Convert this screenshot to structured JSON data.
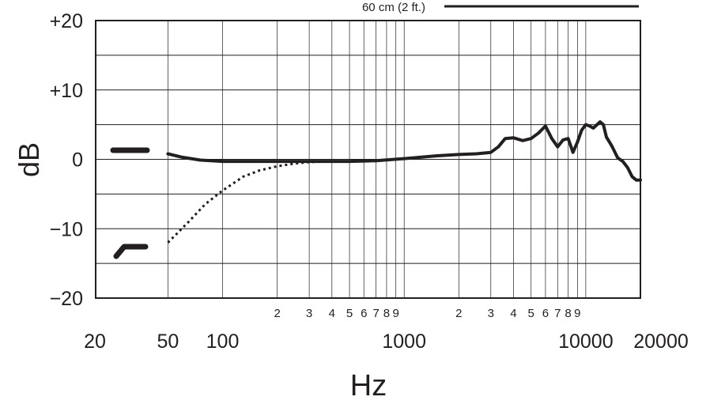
{
  "chart_data": {
    "type": "line",
    "xscale": "log",
    "xlim": [
      20,
      20000
    ],
    "ylim": [
      -20,
      20
    ],
    "xlabel": "Hz",
    "ylabel": "dB",
    "y_ticks": [
      "+20",
      "+10",
      "0",
      "−10",
      "−20"
    ],
    "y_tick_values": [
      20,
      10,
      0,
      -10,
      -20
    ],
    "x_major_ticks": [
      "20",
      "50",
      "100",
      "1000",
      "10000",
      "20000"
    ],
    "x_major_tick_values": [
      20,
      50,
      100,
      1000,
      10000,
      20000
    ],
    "x_minor_ticks": [
      "2",
      "3",
      "4",
      "5",
      "6",
      "7",
      "8",
      "9",
      "2",
      "3",
      "4",
      "5",
      "6",
      "7",
      "8",
      "9"
    ],
    "x_minor_tick_values": [
      200,
      300,
      400,
      500,
      600,
      700,
      800,
      900,
      2000,
      3000,
      4000,
      5000,
      6000,
      7000,
      8000,
      9000
    ],
    "legend_label": "60 cm (2 ft.)",
    "grid": true,
    "series": [
      {
        "style": "solid",
        "x": [
          50,
          60,
          75,
          100,
          150,
          200,
          300,
          400,
          500,
          700,
          1000,
          1500,
          2000,
          2500,
          3000,
          3300,
          3600,
          4000,
          4500,
          5000,
          5500,
          6000,
          6500,
          7000,
          7500,
          8000,
          8500,
          9000,
          9500,
          10000,
          10500,
          11000,
          12000,
          12500,
          13000,
          13500,
          14000,
          15000,
          16000,
          17000,
          18000,
          19000,
          20000
        ],
        "y": [
          0.8,
          0.3,
          -0.1,
          -0.3,
          -0.3,
          -0.3,
          -0.3,
          -0.3,
          -0.3,
          -0.2,
          0.1,
          0.5,
          0.7,
          0.8,
          1.0,
          1.8,
          3.0,
          3.1,
          2.7,
          3.0,
          3.8,
          4.8,
          3.0,
          1.8,
          2.8,
          3.0,
          1.0,
          2.5,
          4.2,
          5.0,
          4.8,
          4.5,
          5.4,
          5.0,
          3.2,
          2.5,
          1.8,
          0.2,
          -0.3,
          -1.2,
          -2.5,
          -3.0,
          -3.0
        ]
      },
      {
        "style": "dotted",
        "x": [
          50,
          65,
          80,
          100,
          130,
          160,
          200,
          250,
          300,
          400
        ],
        "y": [
          -12,
          -9,
          -6.5,
          -4.5,
          -2.5,
          -1.6,
          -1.0,
          -0.6,
          -0.4,
          -0.3
        ]
      }
    ]
  },
  "icons": {
    "flat": "flat-response-icon",
    "rolloff": "low-cut-response-icon"
  }
}
